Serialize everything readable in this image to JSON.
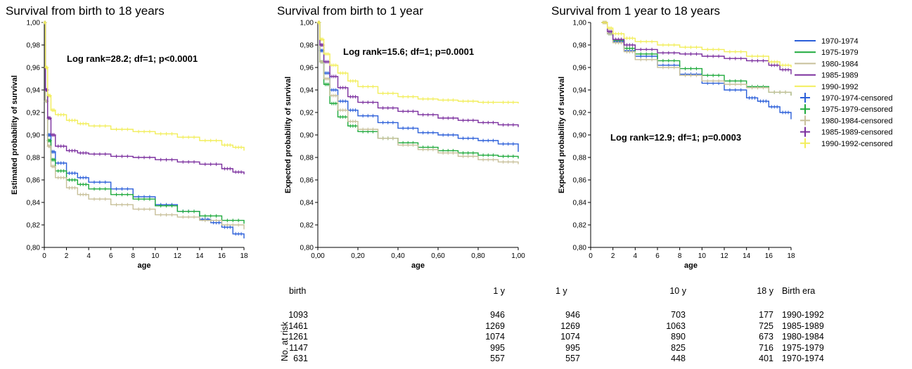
{
  "chart_data": [
    {
      "type": "line",
      "title": "Survival from birth to 18 years",
      "xlabel": "age",
      "ylabel": "Estimated probability of survival",
      "xlim": [
        0,
        18
      ],
      "ylim": [
        0.8,
        1.0
      ],
      "x_ticks": [
        "0",
        "2",
        "4",
        "6",
        "8",
        "10",
        "12",
        "14",
        "16",
        "18"
      ],
      "y_ticks": [
        "0,80",
        "0,82",
        "0,84",
        "0,86",
        "0,88",
        "0,90",
        "0,92",
        "0,94",
        "0,96",
        "0,98",
        "1,00"
      ],
      "annotation": "Log rank=28.2; df=1; p<0.0001",
      "series": [
        {
          "name": "1970-1974",
          "color": "#2b5fd9",
          "x": [
            0,
            0.1,
            0.3,
            0.6,
            1,
            2,
            3,
            4,
            6,
            8,
            10,
            12,
            14,
            15,
            16,
            17,
            18
          ],
          "y": [
            1.0,
            0.94,
            0.9,
            0.885,
            0.875,
            0.866,
            0.862,
            0.858,
            0.852,
            0.845,
            0.838,
            0.832,
            0.825,
            0.822,
            0.818,
            0.812,
            0.808
          ]
        },
        {
          "name": "1975-1979",
          "color": "#1faa3c",
          "x": [
            0,
            0.1,
            0.3,
            0.6,
            1,
            2,
            3,
            4,
            6,
            8,
            10,
            12,
            14,
            16,
            18
          ],
          "y": [
            1.0,
            0.93,
            0.895,
            0.878,
            0.868,
            0.86,
            0.856,
            0.852,
            0.847,
            0.843,
            0.837,
            0.832,
            0.828,
            0.824,
            0.821
          ]
        },
        {
          "name": "1980-1984",
          "color": "#c8c09a",
          "x": [
            0,
            0.1,
            0.3,
            0.6,
            1,
            2,
            3,
            4,
            6,
            8,
            10,
            12,
            14,
            16,
            18
          ],
          "y": [
            1.0,
            0.93,
            0.89,
            0.872,
            0.862,
            0.853,
            0.847,
            0.843,
            0.838,
            0.834,
            0.829,
            0.827,
            0.824,
            0.82,
            0.816
          ]
        },
        {
          "name": "1985-1989",
          "color": "#7b2f9e",
          "x": [
            0,
            0.1,
            0.3,
            0.6,
            1,
            2,
            3,
            4,
            6,
            8,
            10,
            12,
            14,
            16,
            17,
            18
          ],
          "y": [
            1.0,
            0.94,
            0.915,
            0.9,
            0.89,
            0.886,
            0.884,
            0.883,
            0.881,
            0.88,
            0.878,
            0.876,
            0.874,
            0.87,
            0.867,
            0.865
          ]
        },
        {
          "name": "1990-1992",
          "color": "#f2ee5a",
          "x": [
            0,
            0.1,
            0.3,
            0.6,
            1,
            2,
            3,
            4,
            6,
            8,
            10,
            12,
            14,
            16,
            17,
            18
          ],
          "y": [
            1.0,
            0.96,
            0.935,
            0.922,
            0.918,
            0.913,
            0.91,
            0.908,
            0.905,
            0.903,
            0.901,
            0.898,
            0.895,
            0.891,
            0.889,
            0.886
          ]
        }
      ]
    },
    {
      "type": "line",
      "title": "Survival from birth to 1 year",
      "xlabel": "age",
      "ylabel": "Expected probability of survival",
      "xlim": [
        0,
        1
      ],
      "ylim": [
        0.8,
        1.0
      ],
      "x_ticks": [
        "0,00",
        "0,20",
        "0,40",
        "0,60",
        "0,80",
        "1,00"
      ],
      "y_ticks": [
        "0,80",
        "0,82",
        "0,84",
        "0,86",
        "0,88",
        "0,90",
        "0,92",
        "0,94",
        "0,96",
        "0,98",
        "1,00"
      ],
      "annotation": "Log rank=15.6; df=1; p=0.0001",
      "series": [
        {
          "name": "1970-1974",
          "color": "#2b5fd9",
          "x": [
            0,
            0.01,
            0.03,
            0.06,
            0.1,
            0.15,
            0.2,
            0.3,
            0.4,
            0.5,
            0.6,
            0.7,
            0.8,
            0.9,
            1.0
          ],
          "y": [
            1.0,
            0.975,
            0.955,
            0.94,
            0.93,
            0.922,
            0.917,
            0.911,
            0.906,
            0.902,
            0.9,
            0.897,
            0.895,
            0.892,
            0.885
          ]
        },
        {
          "name": "1975-1979",
          "color": "#1faa3c",
          "x": [
            0,
            0.01,
            0.03,
            0.06,
            0.1,
            0.15,
            0.2,
            0.3,
            0.4,
            0.5,
            0.6,
            0.7,
            0.8,
            0.9,
            1.0
          ],
          "y": [
            1.0,
            0.965,
            0.945,
            0.928,
            0.916,
            0.908,
            0.903,
            0.897,
            0.893,
            0.889,
            0.886,
            0.884,
            0.882,
            0.881,
            0.879
          ]
        },
        {
          "name": "1980-1984",
          "color": "#c8c09a",
          "x": [
            0,
            0.01,
            0.03,
            0.06,
            0.1,
            0.15,
            0.2,
            0.3,
            0.4,
            0.5,
            0.6,
            0.7,
            0.8,
            0.9,
            1.0
          ],
          "y": [
            1.0,
            0.965,
            0.95,
            0.935,
            0.922,
            0.912,
            0.905,
            0.897,
            0.891,
            0.887,
            0.884,
            0.881,
            0.878,
            0.876,
            0.874
          ]
        },
        {
          "name": "1985-1989",
          "color": "#7b2f9e",
          "x": [
            0,
            0.01,
            0.03,
            0.06,
            0.1,
            0.15,
            0.2,
            0.3,
            0.4,
            0.5,
            0.6,
            0.7,
            0.8,
            0.9,
            1.0
          ],
          "y": [
            1.0,
            0.98,
            0.965,
            0.952,
            0.942,
            0.934,
            0.929,
            0.924,
            0.921,
            0.918,
            0.915,
            0.913,
            0.911,
            0.909,
            0.907
          ]
        },
        {
          "name": "1990-1992",
          "color": "#f2ee5a",
          "x": [
            0,
            0.01,
            0.03,
            0.06,
            0.1,
            0.15,
            0.2,
            0.3,
            0.4,
            0.5,
            0.6,
            0.7,
            0.8,
            0.9,
            1.0
          ],
          "y": [
            1.0,
            0.985,
            0.972,
            0.962,
            0.955,
            0.948,
            0.943,
            0.937,
            0.934,
            0.932,
            0.931,
            0.93,
            0.929,
            0.929,
            0.928
          ]
        }
      ]
    },
    {
      "type": "line",
      "title": "Survival from 1 year to 18 years",
      "xlabel": "age",
      "ylabel": "Expected probability of survival",
      "xlim": [
        0,
        18
      ],
      "ylim": [
        0.8,
        1.0
      ],
      "x_ticks": [
        "0",
        "2",
        "4",
        "6",
        "8",
        "10",
        "12",
        "14",
        "16",
        "18"
      ],
      "y_ticks": [
        "0,80",
        "0,82",
        "0,84",
        "0,86",
        "0,88",
        "0,90",
        "0,92",
        "0,94",
        "0,96",
        "0,98",
        "1,00"
      ],
      "annotation": "Log rank=12.9; df=1; p=0.0003",
      "series": [
        {
          "name": "1970-1974",
          "color": "#2b5fd9",
          "x": [
            1,
            1.5,
            2,
            3,
            4,
            6,
            8,
            10,
            12,
            14,
            15,
            16,
            17,
            18
          ],
          "y": [
            1.0,
            0.99,
            0.983,
            0.975,
            0.97,
            0.962,
            0.954,
            0.946,
            0.94,
            0.933,
            0.93,
            0.925,
            0.92,
            0.914
          ]
        },
        {
          "name": "1975-1979",
          "color": "#1faa3c",
          "x": [
            1,
            1.5,
            2,
            3,
            4,
            6,
            8,
            10,
            12,
            14,
            16,
            18
          ],
          "y": [
            1.0,
            0.99,
            0.984,
            0.977,
            0.972,
            0.966,
            0.959,
            0.953,
            0.948,
            0.943,
            0.938,
            0.935
          ]
        },
        {
          "name": "1980-1984",
          "color": "#c8c09a",
          "x": [
            1,
            1.5,
            2,
            3,
            4,
            6,
            8,
            10,
            12,
            14,
            16,
            18
          ],
          "y": [
            1.0,
            0.99,
            0.982,
            0.974,
            0.967,
            0.96,
            0.953,
            0.948,
            0.945,
            0.942,
            0.938,
            0.935
          ]
        },
        {
          "name": "1985-1989",
          "color": "#7b2f9e",
          "x": [
            1,
            1.5,
            2,
            3,
            4,
            6,
            8,
            10,
            12,
            14,
            16,
            17,
            18
          ],
          "y": [
            1.0,
            0.992,
            0.985,
            0.98,
            0.976,
            0.973,
            0.972,
            0.97,
            0.968,
            0.966,
            0.962,
            0.958,
            0.954
          ]
        },
        {
          "name": "1990-1992",
          "color": "#f2ee5a",
          "x": [
            1,
            1.5,
            2,
            3,
            4,
            6,
            8,
            10,
            12,
            14,
            16,
            17,
            18
          ],
          "y": [
            1.0,
            0.995,
            0.99,
            0.986,
            0.983,
            0.98,
            0.978,
            0.976,
            0.974,
            0.97,
            0.965,
            0.962,
            0.96
          ]
        }
      ]
    }
  ],
  "legend": {
    "items": [
      {
        "label": "1970-1974",
        "color": "#2b5fd9",
        "kind": "line"
      },
      {
        "label": "1975-1979",
        "color": "#1faa3c",
        "kind": "line"
      },
      {
        "label": "1980-1984",
        "color": "#c8c09a",
        "kind": "line"
      },
      {
        "label": "1985-1989",
        "color": "#7b2f9e",
        "kind": "line"
      },
      {
        "label": "1990-1992",
        "color": "#f2ee5a",
        "kind": "line"
      },
      {
        "label": "1970-1974-censored",
        "color": "#2b5fd9",
        "kind": "plus"
      },
      {
        "label": "1975-1979-censored",
        "color": "#1faa3c",
        "kind": "plus"
      },
      {
        "label": "1980-1984-censored",
        "color": "#c8c09a",
        "kind": "plus"
      },
      {
        "label": "1985-1989-censored",
        "color": "#7b2f9e",
        "kind": "plus"
      },
      {
        "label": "1990-1992-censored",
        "color": "#f2ee5a",
        "kind": "plus"
      }
    ]
  },
  "risk_table": {
    "ylabel": "No. at risk",
    "headers": {
      "birth": "birth",
      "one_y_a": "1 y",
      "one_y_b": "1 y",
      "ten_y": "10 y",
      "eighteen_y": "18 y",
      "era": "Birth era"
    },
    "rows": [
      {
        "birth": "1093",
        "one_y_a": "946",
        "one_y_b": "946",
        "ten_y": "703",
        "eighteen_y": "177",
        "era": "1990-1992"
      },
      {
        "birth": "1461",
        "one_y_a": "1269",
        "one_y_b": "1269",
        "ten_y": "1063",
        "eighteen_y": "725",
        "era": "1985-1989"
      },
      {
        "birth": "1261",
        "one_y_a": "1074",
        "one_y_b": "1074",
        "ten_y": "890",
        "eighteen_y": "673",
        "era": "1980-1984"
      },
      {
        "birth": "1147",
        "one_y_a": "995",
        "one_y_b": "995",
        "ten_y": "825",
        "eighteen_y": "716",
        "era": "1975-1979"
      },
      {
        "birth": "631",
        "one_y_a": "557",
        "one_y_b": "557",
        "ten_y": "448",
        "eighteen_y": "401",
        "era": "1970-1974"
      }
    ]
  }
}
